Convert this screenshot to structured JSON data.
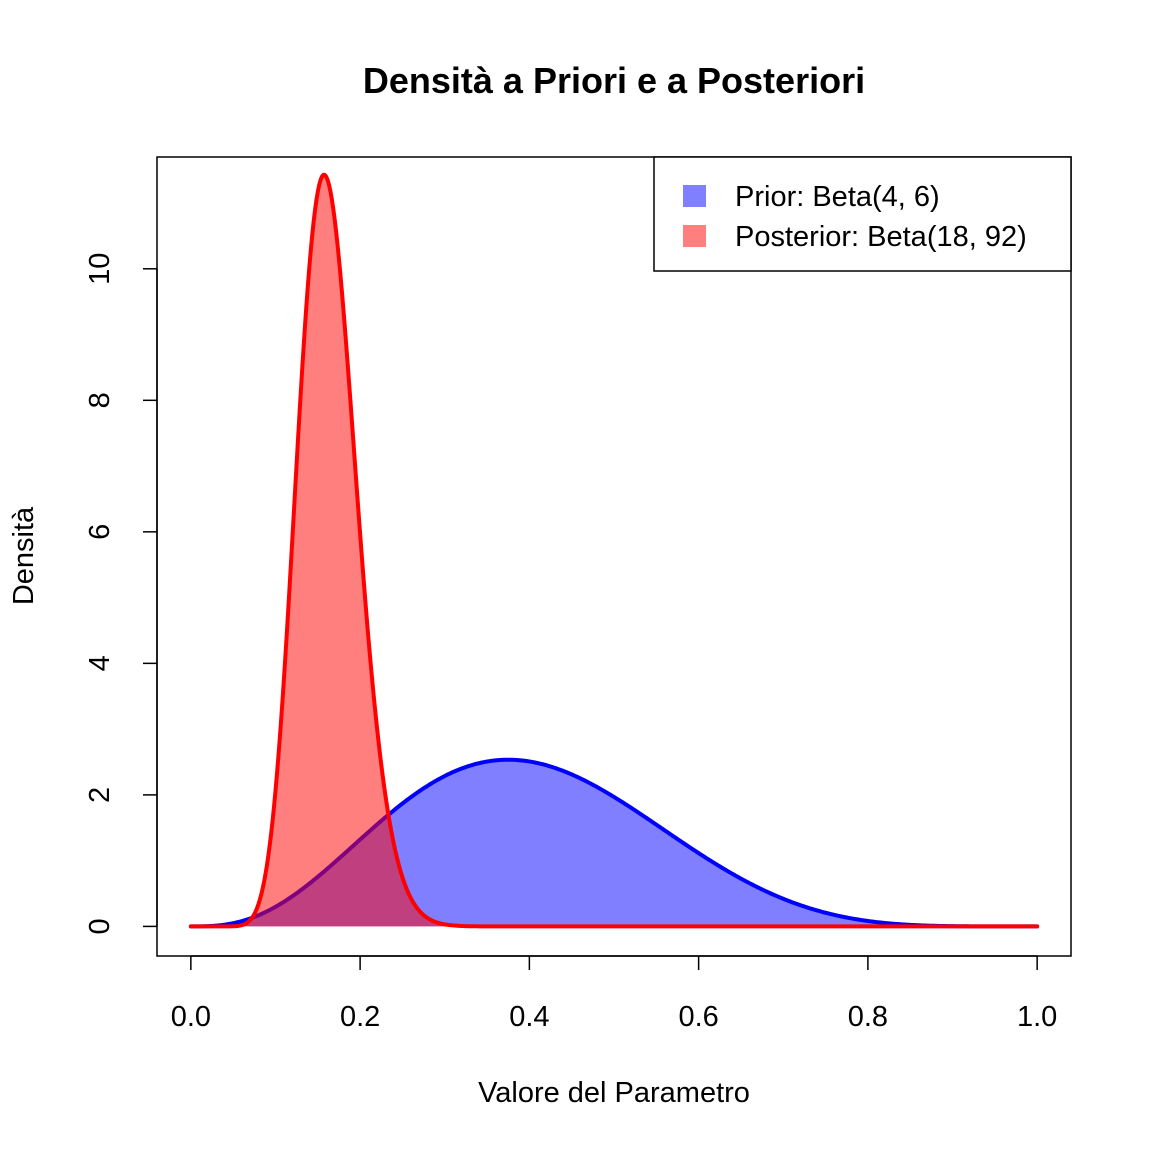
{
  "chart_data": {
    "type": "area",
    "title": "Densità a Priori e a Posteriori",
    "xlabel": "Valore del Parametro",
    "ylabel": "Densità",
    "xlim": [
      -0.04,
      1.04
    ],
    "ylim": [
      -0.45,
      11.7
    ],
    "xticks": [
      0.0,
      0.2,
      0.4,
      0.6,
      0.8,
      1.0
    ],
    "xtick_labels": [
      "0.0",
      "0.2",
      "0.4",
      "0.6",
      "0.8",
      "1.0"
    ],
    "yticks": [
      0,
      2,
      4,
      6,
      8,
      10
    ],
    "ytick_labels": [
      "0",
      "2",
      "4",
      "6",
      "8",
      "10"
    ],
    "grid": false,
    "legend_position": "top-right",
    "series": [
      {
        "name": "Prior: Beta(4, 6)",
        "distribution": "beta",
        "alpha": 4,
        "beta": 6,
        "line_color": "#0000FF",
        "fill_color": "#0000FF",
        "fill_opacity": 0.5
      },
      {
        "name": "Posterior: Beta(18, 92)",
        "distribution": "beta",
        "alpha": 18,
        "beta": 92,
        "line_color": "#FF0000",
        "fill_color": "#FF0000",
        "fill_opacity": 0.5
      }
    ]
  }
}
